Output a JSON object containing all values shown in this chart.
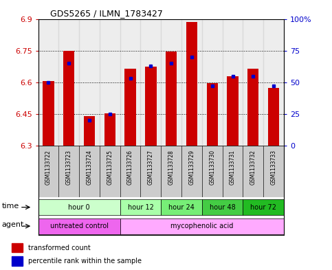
{
  "title": "GDS5265 / ILMN_1783427",
  "samples": [
    "GSM1133722",
    "GSM1133723",
    "GSM1133724",
    "GSM1133725",
    "GSM1133726",
    "GSM1133727",
    "GSM1133728",
    "GSM1133729",
    "GSM1133730",
    "GSM1133731",
    "GSM1133732",
    "GSM1133733"
  ],
  "red_values": [
    6.605,
    6.75,
    6.44,
    6.455,
    6.665,
    6.675,
    6.745,
    6.885,
    6.595,
    6.63,
    6.665,
    6.575
  ],
  "blue_values": [
    50,
    65,
    20,
    25,
    53,
    63,
    65,
    70,
    47,
    55,
    55,
    47
  ],
  "ymin": 6.3,
  "ymax": 6.9,
  "yticks": [
    6.3,
    6.45,
    6.6,
    6.75,
    6.9
  ],
  "ytick_labels": [
    "6.3",
    "6.45",
    "6.6",
    "6.75",
    "6.9"
  ],
  "right_yticks": [
    0,
    25,
    50,
    75,
    100
  ],
  "right_ytick_labels": [
    "0",
    "25",
    "50",
    "75",
    "100%"
  ],
  "time_groups": [
    {
      "label": "hour 0",
      "start": 0,
      "end": 4,
      "green": "#d0ffd0"
    },
    {
      "label": "hour 12",
      "start": 4,
      "end": 6,
      "green": "#aaffaa"
    },
    {
      "label": "hour 24",
      "start": 6,
      "end": 8,
      "green": "#88ee88"
    },
    {
      "label": "hour 48",
      "start": 8,
      "end": 10,
      "green": "#55cc55"
    },
    {
      "label": "hour 72",
      "start": 10,
      "end": 12,
      "green": "#22bb22"
    }
  ],
  "agent_groups": [
    {
      "label": "untreated control",
      "start": 0,
      "end": 4,
      "color": "#ee66ee"
    },
    {
      "label": "mycophenolic acid",
      "start": 4,
      "end": 12,
      "color": "#ffaaff"
    }
  ],
  "bar_color": "#cc0000",
  "blue_color": "#0000cc",
  "label_color_red": "#cc0000",
  "label_color_blue": "#0000cc",
  "legend_red_label": "transformed count",
  "legend_blue_label": "percentile rank within the sample",
  "sample_bg_color": "#cccccc",
  "time_label": "time",
  "agent_label": "agent"
}
